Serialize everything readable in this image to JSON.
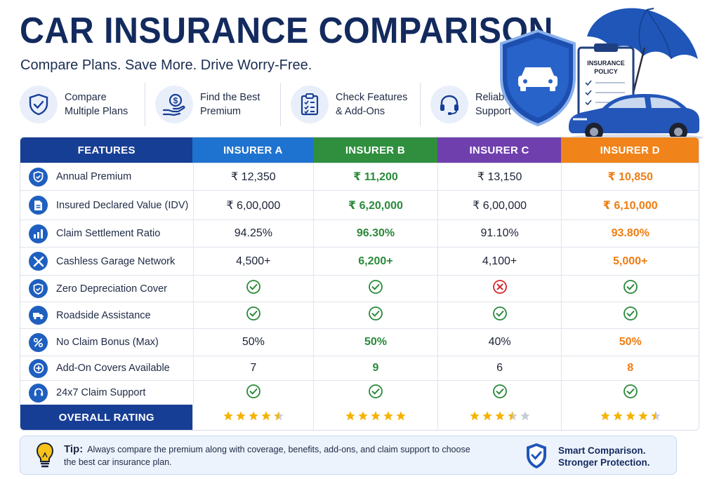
{
  "header": {
    "title": "CAR INSURANCE COMPARISON",
    "subtitle": "Compare Plans. Save More. Drive Worry-Free."
  },
  "features": [
    {
      "icon": "shield-check-icon",
      "line1": "Compare",
      "line2": "Multiple Plans"
    },
    {
      "icon": "money-hand-icon",
      "line1": "Find the Best",
      "line2": "Premium"
    },
    {
      "icon": "checklist-icon",
      "line1": "Check Features",
      "line2": "& Add-Ons"
    },
    {
      "icon": "headset-icon",
      "line1": "Reliable Claim",
      "line2": "Support"
    }
  ],
  "hero": {
    "policy_label_line1": "INSURANCE",
    "policy_label_line2": "POLICY"
  },
  "table": {
    "headers": [
      "FEATURES",
      "INSURER A",
      "INSURER B",
      "INSURER C",
      "INSURER D"
    ],
    "header_colors": [
      "#173e95",
      "#1f73d0",
      "#2f8f3e",
      "#6f3fae",
      "#f0841a"
    ],
    "rows": [
      {
        "icon": "shield-icon",
        "label": "Annual Premium",
        "values": [
          "₹ 12,350",
          "₹ 11,200",
          "₹ 13,150",
          "₹ 10,850"
        ]
      },
      {
        "icon": "document-icon",
        "label": "Insured Declared Value (IDV)",
        "values": [
          "₹ 6,00,000",
          "₹ 6,20,000",
          "₹ 6,00,000",
          "₹ 6,10,000"
        ]
      },
      {
        "icon": "bar-chart-icon",
        "label": "Claim Settlement Ratio",
        "values": [
          "94.25%",
          "96.30%",
          "91.10%",
          "93.80%"
        ]
      },
      {
        "icon": "wrench-icon",
        "label": "Cashless Garage Network",
        "values": [
          "4,500+",
          "6,200+",
          "4,100+",
          "5,000+"
        ]
      },
      {
        "icon": "shield-icon",
        "label": "Zero Depreciation Cover",
        "values": [
          "check",
          "check",
          "cross",
          "check"
        ]
      },
      {
        "icon": "tow-truck-icon",
        "label": "Roadside Assistance",
        "values": [
          "check",
          "check",
          "check",
          "check"
        ]
      },
      {
        "icon": "percent-icon",
        "label": "No Claim Bonus (Max)",
        "values": [
          "50%",
          "50%",
          "40%",
          "50%"
        ]
      },
      {
        "icon": "plus-circle-icon",
        "label": "Add-On Covers Available",
        "values": [
          "7",
          "9",
          "6",
          "8"
        ]
      },
      {
        "icon": "headset-icon",
        "label": "24x7 Claim Support",
        "values": [
          "check",
          "check",
          "check",
          "check"
        ]
      }
    ],
    "rating_label": "OVERALL RATING",
    "ratings": [
      4.5,
      5,
      3.5,
      4.5
    ]
  },
  "tip": {
    "label": "Tip:",
    "text": "Always compare the premium along with coverage, benefits, add-ons, and claim support to choose the best car insurance plan.",
    "slogan_line1": "Smart Comparison.",
    "slogan_line2": "Stronger Protection."
  }
}
